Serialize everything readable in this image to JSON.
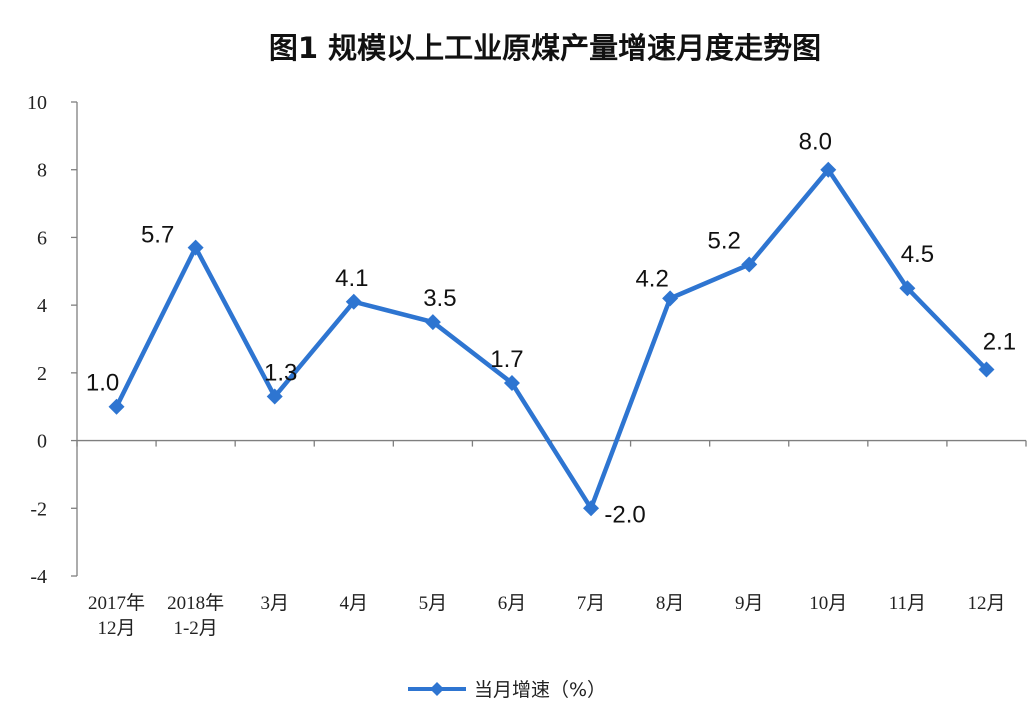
{
  "chart_data": {
    "type": "line",
    "title": "图1  规模以上工业原煤产量增速月度走势图",
    "categories": [
      [
        "2017年",
        "12月"
      ],
      [
        "2018年",
        "1-2月"
      ],
      [
        "3月"
      ],
      [
        "4月"
      ],
      [
        "5月"
      ],
      [
        "6月"
      ],
      [
        "7月"
      ],
      [
        "8月"
      ],
      [
        "9月"
      ],
      [
        "10月"
      ],
      [
        "11月"
      ],
      [
        "12月"
      ]
    ],
    "series": [
      {
        "name": "当月增速（%）",
        "values": [
          1.0,
          5.7,
          1.3,
          4.1,
          3.5,
          1.7,
          -2.0,
          4.2,
          5.2,
          8.0,
          4.5,
          2.1
        ],
        "labels": [
          "1.0",
          "5.7",
          "1.3",
          "4.1",
          "3.5",
          "1.7",
          "-2.0",
          "4.2",
          "5.2",
          "8.0",
          "4.5",
          "2.1"
        ],
        "color": "#2E75D1"
      }
    ],
    "ylim": [
      -4,
      10
    ],
    "yticks": [
      "-4",
      "-2",
      "0",
      "2",
      "4",
      "6",
      "8",
      "10"
    ],
    "grid": false,
    "legend": "bottom-center"
  }
}
